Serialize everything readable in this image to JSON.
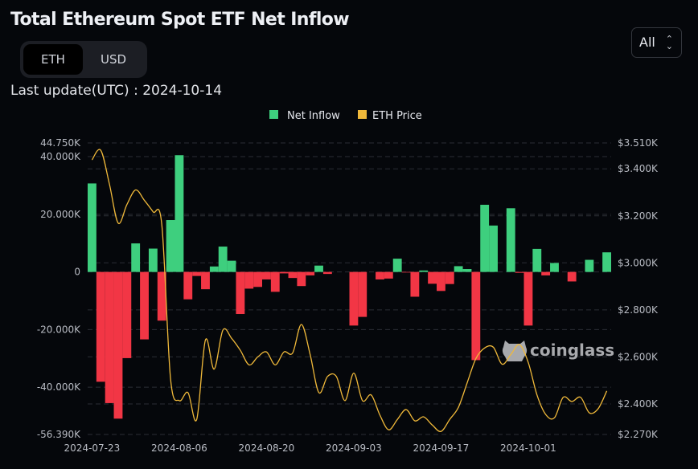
{
  "header": {
    "title": "Total Ethereum Spot ETF Net Inflow",
    "toggle": {
      "options": [
        "ETH",
        "USD"
      ],
      "selected": "ETH"
    },
    "last_update": "Last update(UTC) : 2024-10-14",
    "range_select": {
      "selected": "All",
      "icon": "chevron-up-down-icon"
    }
  },
  "watermark": "coinglass",
  "colors": {
    "inflow": "#3ecf7e",
    "outflow": "#f23645",
    "price": "#f0b93a",
    "background": "#05070b",
    "grid": "#2b2e35"
  },
  "chart_data": {
    "type": "bar+line",
    "legend": {
      "position": "top-center",
      "items": [
        {
          "name": "Net Inflow",
          "color": "#3ecf7e"
        },
        {
          "name": "ETH Price",
          "color": "#f0b93a"
        }
      ]
    },
    "x_tick_labels": [
      "2024-07-23",
      "2024-08-06",
      "2024-08-20",
      "2024-09-03",
      "2024-09-17",
      "2024-10-01"
    ],
    "left_axis": {
      "ticks": [
        "44.750K",
        "40.000K",
        "20.000K",
        "0",
        "-20.000K",
        "-40.000K",
        "-56.390K"
      ],
      "tick_values": [
        44750,
        40000,
        20000,
        0,
        -20000,
        -40000,
        -56390
      ],
      "range": [
        -56390,
        44750
      ]
    },
    "right_axis": {
      "ticks": [
        "$3.510K",
        "$3.400K",
        "$3.200K",
        "$3.000K",
        "$2.800K",
        "$2.600K",
        "$2.400K",
        "$2.270K"
      ],
      "tick_values": [
        3510,
        3400,
        3200,
        3000,
        2800,
        2600,
        2400,
        2270
      ],
      "range": [
        2270,
        3510
      ]
    },
    "categories": [
      "2024-07-23",
      "2024-07-24",
      "2024-07-25",
      "2024-07-26",
      "2024-07-29",
      "2024-07-30",
      "2024-07-31",
      "2024-08-01",
      "2024-08-02",
      "2024-08-05",
      "2024-08-06",
      "2024-08-07",
      "2024-08-08",
      "2024-08-09",
      "2024-08-12",
      "2024-08-13",
      "2024-08-14",
      "2024-08-15",
      "2024-08-16",
      "2024-08-19",
      "2024-08-20",
      "2024-08-21",
      "2024-08-22",
      "2024-08-23",
      "2024-08-26",
      "2024-08-27",
      "2024-08-28",
      "2024-08-29",
      "2024-08-30",
      "2024-09-02",
      "2024-09-03",
      "2024-09-04",
      "2024-09-05",
      "2024-09-06",
      "2024-09-09",
      "2024-09-10",
      "2024-09-11",
      "2024-09-12",
      "2024-09-13",
      "2024-09-16",
      "2024-09-17",
      "2024-09-18",
      "2024-09-19",
      "2024-09-20",
      "2024-09-23",
      "2024-09-24",
      "2024-09-25",
      "2024-09-26",
      "2024-09-27",
      "2024-09-30",
      "2024-10-01",
      "2024-10-02",
      "2024-10-03",
      "2024-10-04",
      "2024-10-07",
      "2024-10-08",
      "2024-10-09",
      "2024-10-10",
      "2024-10-11",
      "2024-10-14"
    ],
    "series": [
      {
        "name": "Net Inflow",
        "unit": "ETH",
        "values": [
          30700,
          -38100,
          -45500,
          -50900,
          -29900,
          9900,
          -23400,
          8100,
          -16900,
          18000,
          40500,
          -9500,
          -1400,
          -6000,
          1900,
          8800,
          3900,
          -14600,
          -5800,
          -5200,
          -2600,
          -6900,
          -500,
          -2100,
          -4900,
          -1200,
          2200,
          -700,
          0,
          0,
          -18600,
          -15600,
          0,
          -2600,
          -2300,
          4600,
          -200,
          -8600,
          500,
          -4100,
          -6600,
          -4200,
          2000,
          1000,
          -30600,
          23300,
          16100,
          0,
          22100,
          -300,
          -18600,
          8000,
          -1200,
          3100,
          0,
          -3300,
          0,
          4200,
          0,
          6800
        ]
      },
      {
        "name": "ETH Price",
        "unit": "USD",
        "values": [
          3438,
          3479,
          3334,
          3169,
          3248,
          3310,
          3266,
          3217,
          3162,
          2507,
          2414,
          2448,
          2334,
          2672,
          2548,
          2714,
          2679,
          2628,
          2566,
          2600,
          2621,
          2566,
          2621,
          2617,
          2738,
          2610,
          2448,
          2517,
          2517,
          2414,
          2531,
          2414,
          2438,
          2352,
          2290,
          2334,
          2376,
          2328,
          2345,
          2310,
          2283,
          2334,
          2386,
          2490,
          2593,
          2638,
          2641,
          2569,
          2610,
          2652,
          2576,
          2438,
          2355,
          2341,
          2428,
          2410,
          2428,
          2362,
          2379,
          2455
        ]
      }
    ]
  }
}
